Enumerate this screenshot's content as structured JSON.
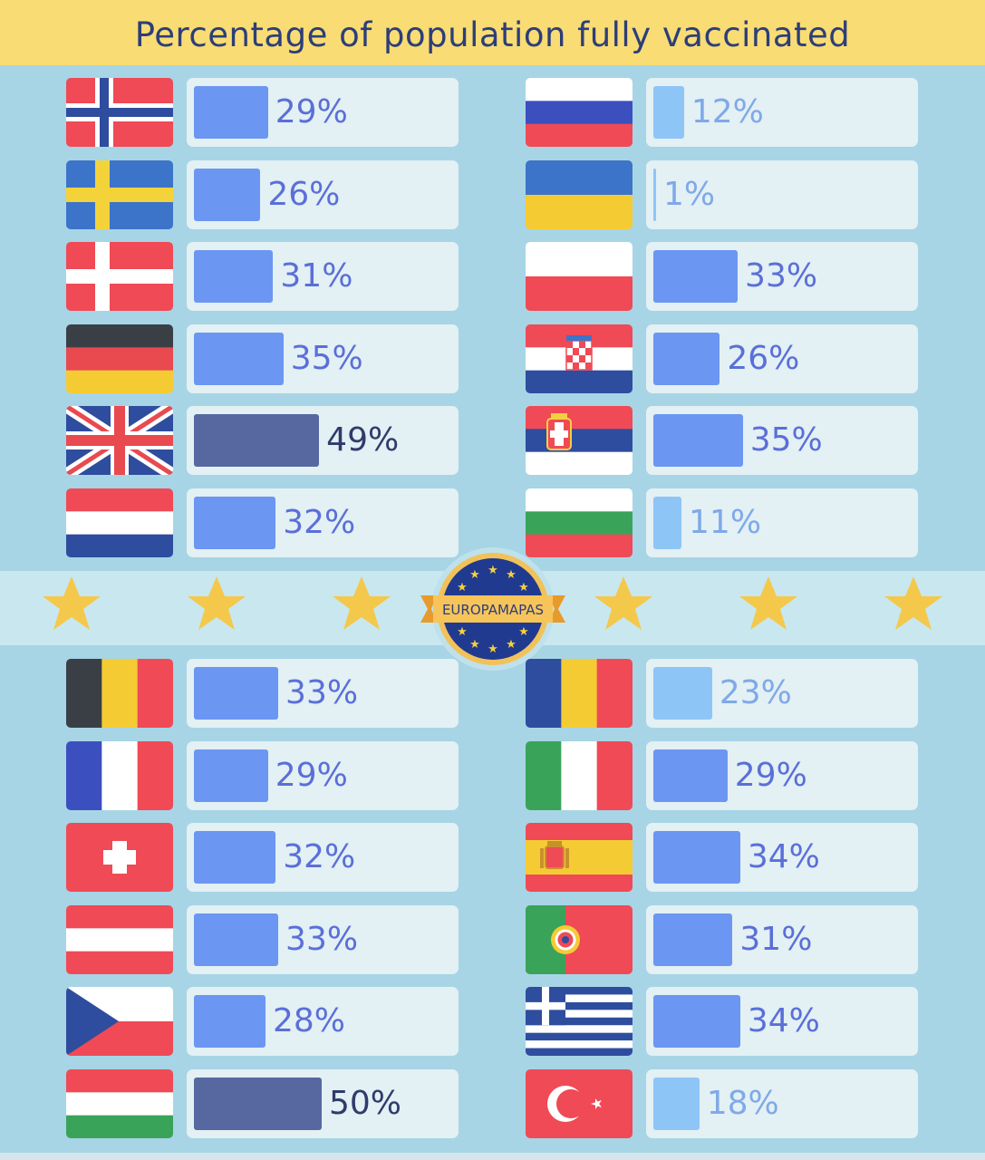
{
  "title": "Percentage of population fully vaccinated",
  "badge_text": "EUROPAMAPAS",
  "colors": {
    "low": "#8ec5f7",
    "mid": "#6b96f2",
    "high": "#56689f",
    "label": "#5a6fd8",
    "label_low": "#7fa9e8",
    "label_high": "#2f3b6b"
  },
  "chart_data": {
    "type": "bar",
    "title": "Percentage of population fully vaccinated",
    "unit": "%",
    "ylim": [
      0,
      100
    ],
    "groups": [
      {
        "position": "top-left",
        "items": [
          {
            "country": "Norway",
            "flag": "norway-flag",
            "value": 29,
            "label": "29%"
          },
          {
            "country": "Sweden",
            "flag": "sweden-flag",
            "value": 26,
            "label": "26%"
          },
          {
            "country": "Denmark",
            "flag": "denmark-flag",
            "value": 31,
            "label": "31%"
          },
          {
            "country": "Germany",
            "flag": "germany-flag",
            "value": 35,
            "label": "35%"
          },
          {
            "country": "United Kingdom",
            "flag": "uk-flag",
            "value": 49,
            "label": "49%"
          },
          {
            "country": "Netherlands",
            "flag": "netherlands-flag",
            "value": 32,
            "label": "32%"
          }
        ]
      },
      {
        "position": "top-right",
        "items": [
          {
            "country": "Russia",
            "flag": "russia-flag",
            "value": 12,
            "label": "12%"
          },
          {
            "country": "Ukraine",
            "flag": "ukraine-flag",
            "value": 1,
            "label": "1%"
          },
          {
            "country": "Poland",
            "flag": "poland-flag",
            "value": 33,
            "label": "33%"
          },
          {
            "country": "Croatia",
            "flag": "croatia-flag",
            "value": 26,
            "label": "26%"
          },
          {
            "country": "Serbia",
            "flag": "serbia-flag",
            "value": 35,
            "label": "35%"
          },
          {
            "country": "Bulgaria",
            "flag": "bulgaria-flag",
            "value": 11,
            "label": "11%"
          }
        ]
      },
      {
        "position": "bottom-left",
        "items": [
          {
            "country": "Belgium",
            "flag": "belgium-flag",
            "value": 33,
            "label": "33%"
          },
          {
            "country": "France",
            "flag": "france-flag",
            "value": 29,
            "label": "29%"
          },
          {
            "country": "Switzerland",
            "flag": "switzerland-flag",
            "value": 32,
            "label": "32%"
          },
          {
            "country": "Austria",
            "flag": "austria-flag",
            "value": 33,
            "label": "33%"
          },
          {
            "country": "Czechia",
            "flag": "czechia-flag",
            "value": 28,
            "label": "28%"
          },
          {
            "country": "Hungary",
            "flag": "hungary-flag",
            "value": 50,
            "label": "50%"
          }
        ]
      },
      {
        "position": "bottom-right",
        "items": [
          {
            "country": "Romania",
            "flag": "romania-flag",
            "value": 23,
            "label": "23%"
          },
          {
            "country": "Italy",
            "flag": "italy-flag",
            "value": 29,
            "label": "29%"
          },
          {
            "country": "Spain",
            "flag": "spain-flag",
            "value": 34,
            "label": "34%"
          },
          {
            "country": "Portugal",
            "flag": "portugal-flag",
            "value": 31,
            "label": "31%"
          },
          {
            "country": "Greece",
            "flag": "greece-flag",
            "value": 34,
            "label": "34%"
          },
          {
            "country": "Turkey",
            "flag": "turkey-flag",
            "value": 18,
            "label": "18%"
          }
        ]
      }
    ]
  }
}
